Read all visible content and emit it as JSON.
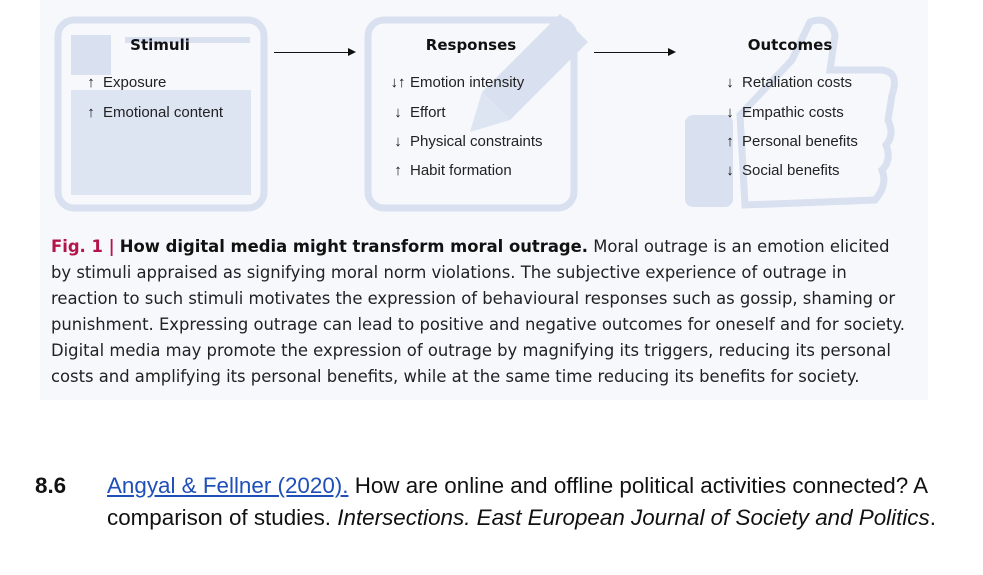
{
  "figure": {
    "stimuli": {
      "heading": "Stimuli",
      "items": [
        {
          "arrow": "↑",
          "label": "Exposure"
        },
        {
          "arrow": "↑",
          "label": "Emotional content"
        }
      ]
    },
    "responses": {
      "heading": "Responses",
      "items": [
        {
          "arrow": "↓↑",
          "label": "Emotion intensity"
        },
        {
          "arrow": "↓",
          "label": "Effort"
        },
        {
          "arrow": "↓",
          "label": "Physical constraints"
        },
        {
          "arrow": "↑",
          "label": "Habit formation"
        }
      ]
    },
    "outcomes": {
      "heading": "Outcomes",
      "items": [
        {
          "arrow": "↓",
          "label": "Retaliation costs"
        },
        {
          "arrow": "↓",
          "label": "Empathic costs"
        },
        {
          "arrow": "↑",
          "label": "Personal benefits"
        },
        {
          "arrow": "↓",
          "label": "Social benefits"
        }
      ]
    },
    "background_icons": [
      "browser-window-icon",
      "pencil-icon",
      "thumbs-up-icon"
    ],
    "caption": {
      "label": "Fig. 1 |",
      "title": "How digital media might transform moral outrage.",
      "text": "Moral outrage is an emotion elicited by stimuli appraised as signifying moral norm violations. The subjective experience of outrage in reaction to such stimuli motivates the expression of behavioural responses such as gossip, shaming or punishment. Expressing outrage can lead to positive and negative outcomes for oneself and for society. Digital media may promote the expression of outrage by magnifying its triggers, reducing its personal costs and amplifying its personal benefits, while at the same time reducing its benefits for society."
    }
  },
  "reference": {
    "number": "8.6",
    "link_text": "Angyal & Fellner (2020).",
    "title": "How are online and offline political activities connected? A comparison of studies.",
    "journal": "Intersections. East European Journal of Society and Politics",
    "end": "."
  },
  "colors": {
    "caption_label": "#b5144a",
    "link": "#1f4fb8",
    "icon_tint": "#d9e0f0",
    "panel_bg": "#f7f8fb"
  }
}
